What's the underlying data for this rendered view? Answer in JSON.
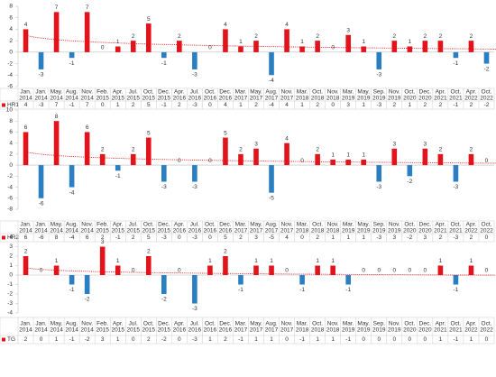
{
  "chart_data": [
    {
      "type": "bar",
      "categories": [
        "Jan. 2014",
        "Jan. 2014",
        "May. 2014",
        "Aug. 2014",
        "Nov. 2014",
        "Feb. 2015",
        "Apr. 2015",
        "Jul. 2015",
        "Oct. 2015",
        "Dec. 2015",
        "Apr. 2016",
        "Jul. 2016",
        "Oct. 2016",
        "Dec. 2016",
        "Mar. 2017",
        "May. 2017",
        "Aug. 2017",
        "Nov. 2017",
        "Mar. 2018",
        "Oct. 2018",
        "Nov. 2018",
        "Mar. 2019",
        "May. 2019",
        "Sep. 2019",
        "Nov. 2019",
        "Oct. 2020",
        "Dec. 2020",
        "Apr. 2021",
        "Oct. 2021",
        "Apr. 2022",
        "Oct. 2022"
      ],
      "series": [
        {
          "name": "HR1",
          "color": "#e3121b",
          "negative_color": "#2a7ec2",
          "values": [
            4,
            -3,
            7,
            -1,
            7,
            0,
            1,
            2,
            5,
            -1,
            2,
            -3,
            0,
            4,
            1,
            2,
            -4,
            4,
            1,
            2,
            0,
            3,
            1,
            -3,
            2,
            1,
            2,
            2,
            -1,
            2,
            -2
          ]
        }
      ],
      "ylim": [
        -6,
        8
      ],
      "yticks": [
        -6,
        -4,
        -2,
        0,
        2,
        4,
        6,
        8
      ],
      "trendline": "logarithmic"
    },
    {
      "type": "bar",
      "categories": [
        "Jan. 2014",
        "Jan. 2014",
        "May. 2014",
        "Aug. 2014",
        "Nov. 2014",
        "Feb. 2015",
        "Apr. 2015",
        "Jul. 2015",
        "Oct. 2015",
        "Dec. 2015",
        "Apr. 2016",
        "Jul. 2016",
        "Oct. 2016",
        "Dec. 2016",
        "Mar. 2017",
        "May. 2017",
        "Aug. 2017",
        "Nov. 2017",
        "Mar. 2018",
        "Oct. 2018",
        "Nov. 2018",
        "Mar. 2019",
        "May. 2019",
        "Sep. 2019",
        "Nov. 2019",
        "Oct. 2020",
        "Dec. 2020",
        "Apr. 2021",
        "Oct. 2021",
        "Apr. 2022",
        "Oct. 2022"
      ],
      "series": [
        {
          "name": "HR2",
          "color": "#e3121b",
          "negative_color": "#2a7ec2",
          "values": [
            6,
            -6,
            8,
            -4,
            6,
            2,
            -1,
            2,
            5,
            -3,
            0,
            -3,
            0,
            5,
            2,
            3,
            -5,
            4,
            0,
            2,
            1,
            1,
            1,
            -3,
            3,
            -2,
            3,
            2,
            -3,
            2,
            0
          ]
        }
      ],
      "ylim": [
        -8,
        10
      ],
      "yticks": [
        -8,
        -6,
        -4,
        -2,
        0,
        2,
        4,
        6,
        8,
        10
      ],
      "trendline": "logarithmic"
    },
    {
      "type": "bar",
      "categories": [
        "Jan. 2014",
        "Jan. 2014",
        "May. 2014",
        "Aug. 2014",
        "Nov. 2014",
        "Feb. 2015",
        "Apr. 2015",
        "Jul. 2015",
        "Oct. 2015",
        "Dec. 2015",
        "Apr. 2016",
        "Jul. 2016",
        "Oct. 2016",
        "Dec. 2016",
        "Mar. 2017",
        "May. 2017",
        "Aug. 2017",
        "Nov. 2017",
        "Mar. 2018",
        "Oct. 2018",
        "Nov. 2018",
        "Mar. 2019",
        "May. 2019",
        "Sep. 2019",
        "Nov. 2019",
        "Oct. 2020",
        "Dec. 2020",
        "Apr. 2021",
        "Oct. 2021",
        "Apr. 2022",
        "Oct. 2022"
      ],
      "series": [
        {
          "name": "TG",
          "color": "#e3121b",
          "negative_color": "#2a7ec2",
          "values": [
            2,
            0,
            1,
            -1,
            -2,
            3,
            1,
            0,
            2,
            -2,
            0,
            -3,
            1,
            2,
            -1,
            1,
            1,
            0,
            -1,
            1,
            1,
            -1,
            0,
            0,
            0,
            0,
            0,
            1,
            -1,
            1,
            0
          ]
        }
      ],
      "ylim": [
        -4,
        4
      ],
      "yticks": [
        -4,
        -3,
        -2,
        -1,
        0,
        1,
        2,
        3,
        4
      ],
      "trendline": "logarithmic"
    }
  ]
}
